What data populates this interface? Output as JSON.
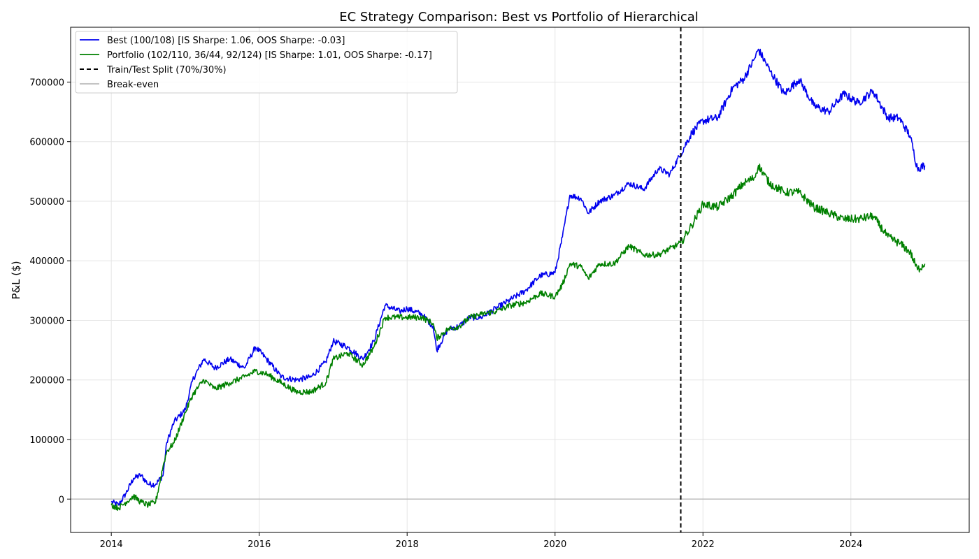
{
  "chart_data": {
    "type": "line",
    "title": "EC Strategy Comparison: Best vs Portfolio of Hierarchical",
    "xlabel": "",
    "ylabel": "P&L ($)",
    "xlim": [
      2013.45,
      2025.6
    ],
    "ylim": [
      -56000,
      792000
    ],
    "x_ticks": [
      2014,
      2016,
      2018,
      2020,
      2022,
      2024
    ],
    "x_tick_labels": [
      "2014",
      "2016",
      "2018",
      "2020",
      "2022",
      "2024"
    ],
    "y_ticks": [
      0,
      100000,
      200000,
      300000,
      400000,
      500000,
      600000,
      700000
    ],
    "y_tick_labels": [
      "0",
      "100000",
      "200000",
      "300000",
      "400000",
      "500000",
      "600000",
      "700000"
    ],
    "grid": true,
    "legend_position": "top-left",
    "split_x": 2021.7,
    "break_even_y": 0,
    "series": [
      {
        "name": "Best (100/108) [IS Sharpe: 1.06, OOS Sharpe: -0.03]",
        "color": "#0000ee",
        "x": [
          2014.0,
          2014.1,
          2014.2,
          2014.3,
          2014.4,
          2014.5,
          2014.6,
          2014.7,
          2014.75,
          2014.85,
          2015.0,
          2015.1,
          2015.25,
          2015.4,
          2015.6,
          2015.8,
          2015.95,
          2016.1,
          2016.3,
          2016.5,
          2016.7,
          2016.9,
          2017.0,
          2017.2,
          2017.4,
          2017.55,
          2017.7,
          2017.9,
          2018.0,
          2018.2,
          2018.35,
          2018.4,
          2018.55,
          2018.7,
          2018.85,
          2019.0,
          2019.2,
          2019.4,
          2019.6,
          2019.8,
          2020.0,
          2020.1,
          2020.2,
          2020.35,
          2020.45,
          2020.6,
          2020.8,
          2021.0,
          2021.2,
          2021.4,
          2021.55,
          2021.7,
          2021.85,
          2022.0,
          2022.2,
          2022.4,
          2022.55,
          2022.7,
          2022.75,
          2022.9,
          2023.1,
          2023.3,
          2023.5,
          2023.7,
          2023.9,
          2024.1,
          2024.3,
          2024.5,
          2024.65,
          2024.8,
          2024.9,
          2025.0
        ],
        "y": [
          -5000,
          -10000,
          10000,
          35000,
          40000,
          25000,
          25000,
          40000,
          95000,
          130000,
          150000,
          200000,
          235000,
          220000,
          235000,
          220000,
          255000,
          235000,
          205000,
          200000,
          205000,
          230000,
          265000,
          255000,
          235000,
          265000,
          325000,
          315000,
          320000,
          310000,
          290000,
          250000,
          285000,
          290000,
          305000,
          305000,
          320000,
          335000,
          350000,
          375000,
          380000,
          440000,
          510000,
          505000,
          480000,
          500000,
          510000,
          530000,
          520000,
          555000,
          545000,
          580000,
          615000,
          635000,
          640000,
          690000,
          705000,
          740000,
          755000,
          720000,
          680000,
          705000,
          660000,
          650000,
          680000,
          665000,
          685000,
          640000,
          640000,
          610000,
          555000,
          560000
        ]
      },
      {
        "name": "Portfolio (102/110, 36/44, 92/124) [IS Sharpe: 1.01, OOS Sharpe: -0.17]",
        "color": "#008000",
        "x": [
          2014.0,
          2014.1,
          2014.2,
          2014.3,
          2014.4,
          2014.5,
          2014.6,
          2014.7,
          2014.75,
          2014.85,
          2015.0,
          2015.1,
          2015.25,
          2015.4,
          2015.6,
          2015.8,
          2015.95,
          2016.1,
          2016.3,
          2016.5,
          2016.7,
          2016.9,
          2017.0,
          2017.2,
          2017.4,
          2017.55,
          2017.7,
          2017.9,
          2018.0,
          2018.2,
          2018.35,
          2018.4,
          2018.55,
          2018.7,
          2018.85,
          2019.0,
          2019.2,
          2019.4,
          2019.6,
          2019.8,
          2020.0,
          2020.1,
          2020.2,
          2020.35,
          2020.45,
          2020.6,
          2020.8,
          2021.0,
          2021.2,
          2021.4,
          2021.55,
          2021.7,
          2021.85,
          2022.0,
          2022.2,
          2022.4,
          2022.55,
          2022.7,
          2022.75,
          2022.9,
          2023.1,
          2023.3,
          2023.5,
          2023.7,
          2023.9,
          2024.1,
          2024.3,
          2024.5,
          2024.65,
          2024.8,
          2024.9,
          2025.0
        ],
        "y": [
          -10000,
          -15000,
          -5000,
          5000,
          -5000,
          -10000,
          -5000,
          55000,
          80000,
          95000,
          145000,
          175000,
          200000,
          185000,
          195000,
          205000,
          215000,
          210000,
          195000,
          180000,
          180000,
          195000,
          235000,
          245000,
          225000,
          255000,
          305000,
          305000,
          305000,
          305000,
          295000,
          270000,
          285000,
          290000,
          305000,
          310000,
          315000,
          325000,
          330000,
          345000,
          340000,
          360000,
          395000,
          390000,
          370000,
          395000,
          395000,
          425000,
          410000,
          410000,
          420000,
          430000,
          460000,
          495000,
          490000,
          510000,
          530000,
          540000,
          560000,
          530000,
          515000,
          515000,
          490000,
          480000,
          470000,
          470000,
          475000,
          440000,
          430000,
          415000,
          385000,
          395000
        ]
      }
    ],
    "legend": [
      {
        "label": "Best (100/108) [IS Sharpe: 1.06, OOS Sharpe: -0.03]",
        "color": "#0000ee",
        "style": "solid"
      },
      {
        "label": "Portfolio (102/110, 36/44, 92/124) [IS Sharpe: 1.01, OOS Sharpe: -0.17]",
        "color": "#008000",
        "style": "solid"
      },
      {
        "label": "Train/Test Split (70%/30%)",
        "color": "#000000",
        "style": "dashed"
      },
      {
        "label": "Break-even",
        "color": "#bbbbbb",
        "style": "solid"
      }
    ]
  }
}
